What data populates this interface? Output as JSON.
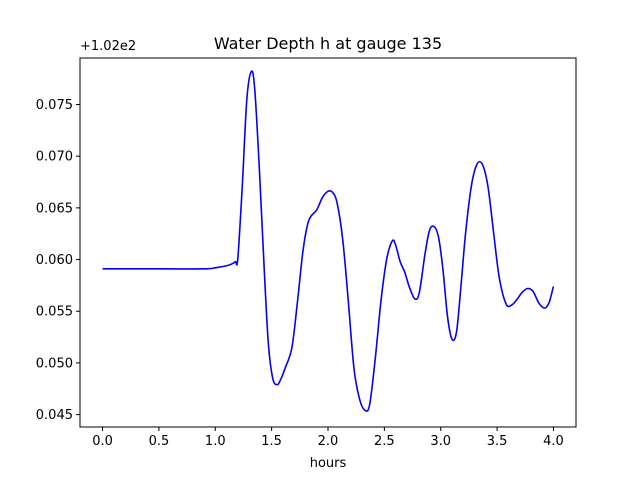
{
  "chart_data": {
    "type": "line",
    "title": "Water Depth h at gauge 135",
    "xlabel": "hours",
    "ylabel": "",
    "y_offset_text": "+1.02e2",
    "xlim": [
      -0.2,
      4.2
    ],
    "ylim": [
      0.0438,
      0.0795
    ],
    "x_ticks": [
      0.0,
      0.5,
      1.0,
      1.5,
      2.0,
      2.5,
      3.0,
      3.5,
      4.0
    ],
    "x_tick_labels": [
      "0.0",
      "0.5",
      "1.0",
      "1.5",
      "2.0",
      "2.5",
      "3.0",
      "3.5",
      "4.0"
    ],
    "y_ticks": [
      0.045,
      0.05,
      0.055,
      0.06,
      0.065,
      0.07,
      0.075
    ],
    "y_tick_labels": [
      "0.045",
      "0.050",
      "0.055",
      "0.060",
      "0.065",
      "0.070",
      "0.075"
    ],
    "grid": false,
    "line_color": "#0000ff",
    "series": [
      {
        "x": [
          0.0,
          0.5,
          0.9,
          1.0,
          1.1,
          1.15,
          1.18,
          1.2,
          1.24,
          1.28,
          1.32,
          1.35,
          1.39,
          1.43,
          1.47,
          1.51,
          1.55,
          1.58,
          1.62,
          1.68,
          1.73,
          1.78,
          1.83,
          1.9,
          1.95,
          2.0,
          2.04,
          2.08,
          2.13,
          2.18,
          2.23,
          2.28,
          2.33,
          2.37,
          2.42,
          2.47,
          2.52,
          2.57,
          2.6,
          2.64,
          2.68,
          2.72,
          2.77,
          2.81,
          2.86,
          2.9,
          2.94,
          2.98,
          3.02,
          3.06,
          3.1,
          3.14,
          3.18,
          3.22,
          3.27,
          3.32,
          3.37,
          3.42,
          3.47,
          3.52,
          3.58,
          3.63,
          3.68,
          3.72,
          3.77,
          3.82,
          3.87,
          3.92,
          3.96,
          4.0
        ],
        "y": [
          0.0591,
          0.0591,
          0.0591,
          0.0592,
          0.0594,
          0.0596,
          0.0598,
          0.0601,
          0.0672,
          0.0755,
          0.0782,
          0.0765,
          0.069,
          0.06,
          0.052,
          0.0485,
          0.0479,
          0.0484,
          0.0495,
          0.0515,
          0.056,
          0.061,
          0.0638,
          0.0648,
          0.066,
          0.0666,
          0.0665,
          0.0655,
          0.062,
          0.056,
          0.0495,
          0.0465,
          0.0454,
          0.046,
          0.0505,
          0.056,
          0.06,
          0.0618,
          0.0614,
          0.0598,
          0.0588,
          0.0574,
          0.0562,
          0.0568,
          0.0605,
          0.0628,
          0.0632,
          0.0622,
          0.059,
          0.0545,
          0.0523,
          0.053,
          0.0575,
          0.0625,
          0.067,
          0.0692,
          0.0692,
          0.067,
          0.0625,
          0.0582,
          0.0557,
          0.0556,
          0.0562,
          0.0568,
          0.0572,
          0.0569,
          0.0558,
          0.0553,
          0.0558,
          0.0574
        ]
      }
    ]
  }
}
